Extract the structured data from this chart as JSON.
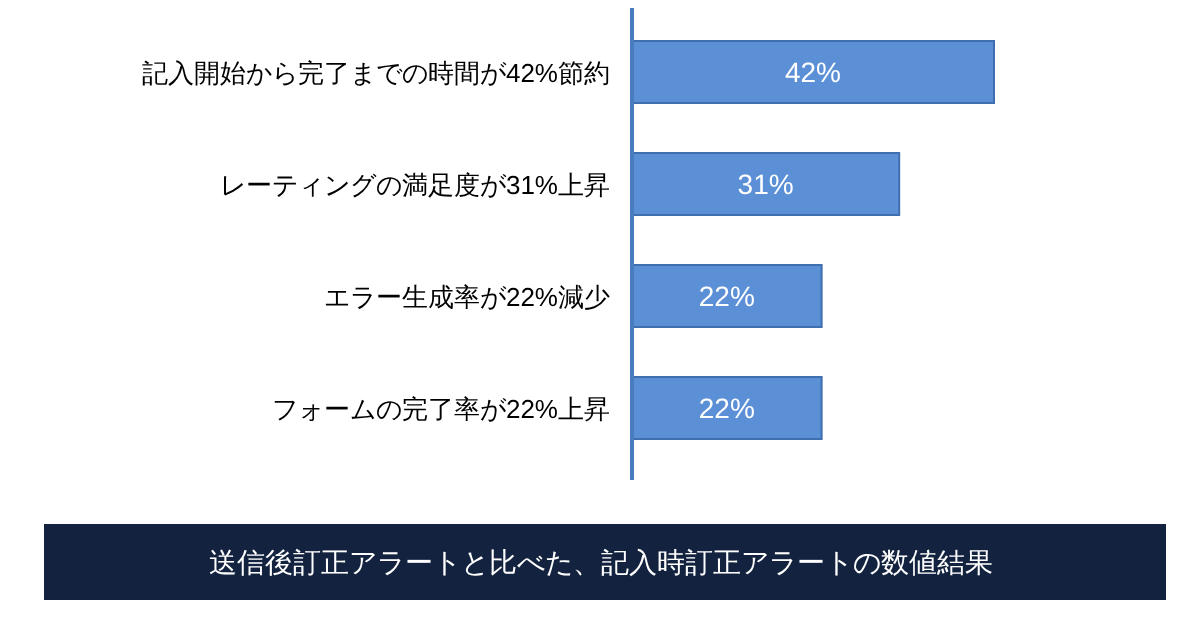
{
  "chart_data": {
    "type": "bar",
    "orientation": "horizontal",
    "title": "送信後訂正アラートと比べた、記入時訂正アラートの数値結果",
    "categories": [
      "記入開始から完了までの時間が42%節約",
      "レーティングの満足度が31%上昇",
      "エラー生成率が22%減少",
      "フォームの完了率が22%上昇"
    ],
    "values": [
      42,
      31,
      22,
      22
    ],
    "value_labels": [
      "42%",
      "31%",
      "22%",
      "22%"
    ],
    "color": "#5b8fd6"
  }
}
